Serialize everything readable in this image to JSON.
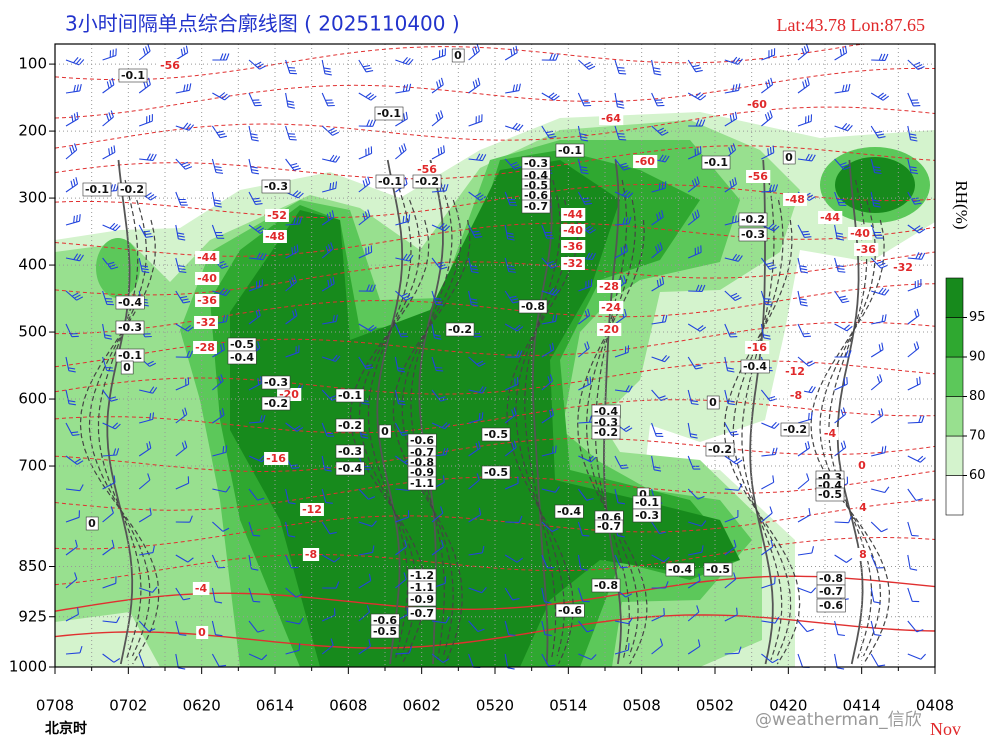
{
  "chart_data": {
    "type": "contour",
    "title": "3小时间隔单点综合廓线图 ( 2025110400 )",
    "location": "Lat:43.78  Lon:87.65",
    "categories": [
      "0708",
      "0702",
      "0620",
      "0614",
      "0608",
      "0602",
      "0520",
      "0514",
      "0508",
      "0502",
      "0420",
      "0414",
      "0408"
    ],
    "x_axis_label": "北京时",
    "month": "Nov",
    "ylim": [
      70,
      1000
    ],
    "yticks": [
      100,
      200,
      300,
      400,
      500,
      600,
      700,
      850,
      925,
      1000
    ],
    "grid": true,
    "colorbar": {
      "label": "RH(%)",
      "levels": [
        60,
        70,
        80,
        90,
        95
      ],
      "colors": [
        "#ffffff",
        "#d4f3cd",
        "#98e08f",
        "#5cc85a",
        "#2fa830",
        "#178a1c"
      ]
    },
    "temperature_labels": [
      "-56",
      "-60",
      "-64",
      "-60",
      "-56",
      "-52",
      "-48",
      "-44",
      "-40",
      "-36",
      "-32",
      "-28",
      "-20",
      "-16",
      "-12",
      "-8",
      "-4",
      "0",
      "-56",
      "-48",
      "-44",
      "-40",
      "-36",
      "-32",
      "-44",
      "-40",
      "-36",
      "-32",
      "-28",
      "-24",
      "-20",
      "-16",
      "-12",
      "-8",
      "-4",
      "0",
      "4",
      "8"
    ],
    "omega_labels": [
      "-0.1",
      "0",
      "-0.1",
      "-0.1",
      "-0.1",
      "0",
      "-0.1",
      "-0.2",
      "-0.3",
      "-0.1",
      "-0.2",
      "-0.3",
      "-0.4",
      "-0.5",
      "-0.6",
      "-0.7",
      "-0.2",
      "-0.3",
      "-0.4",
      "-0.3",
      "-0.1",
      "-0.5",
      "-0.4",
      "-0.8",
      "-0.2",
      "-0.3",
      "-0.2",
      "-0.1",
      "-0.2",
      "-0.3",
      "-0.4",
      "0",
      "-0.6",
      "-0.7",
      "-0.8",
      "-0.9",
      "-1.1",
      "-0.5",
      "-0.5",
      "-0.4",
      "-0.3",
      "-0.2",
      "0",
      "-0.2",
      "-0.2",
      "-0.4",
      "-0.4",
      "-0.6",
      "-0.7",
      "0",
      "-0.1",
      "-0.3",
      "-0.8",
      "-0.6",
      "-0.4",
      "-0.5",
      "-0.3",
      "-0.4",
      "-0.5",
      "-0.8",
      "-0.7",
      "-0.6",
      "-0.6",
      "-0.5",
      "0",
      "-1.2",
      "-1.1",
      "-0.9",
      "-0.7",
      "0"
    ],
    "watermark": "@weatherman_信欣"
  }
}
